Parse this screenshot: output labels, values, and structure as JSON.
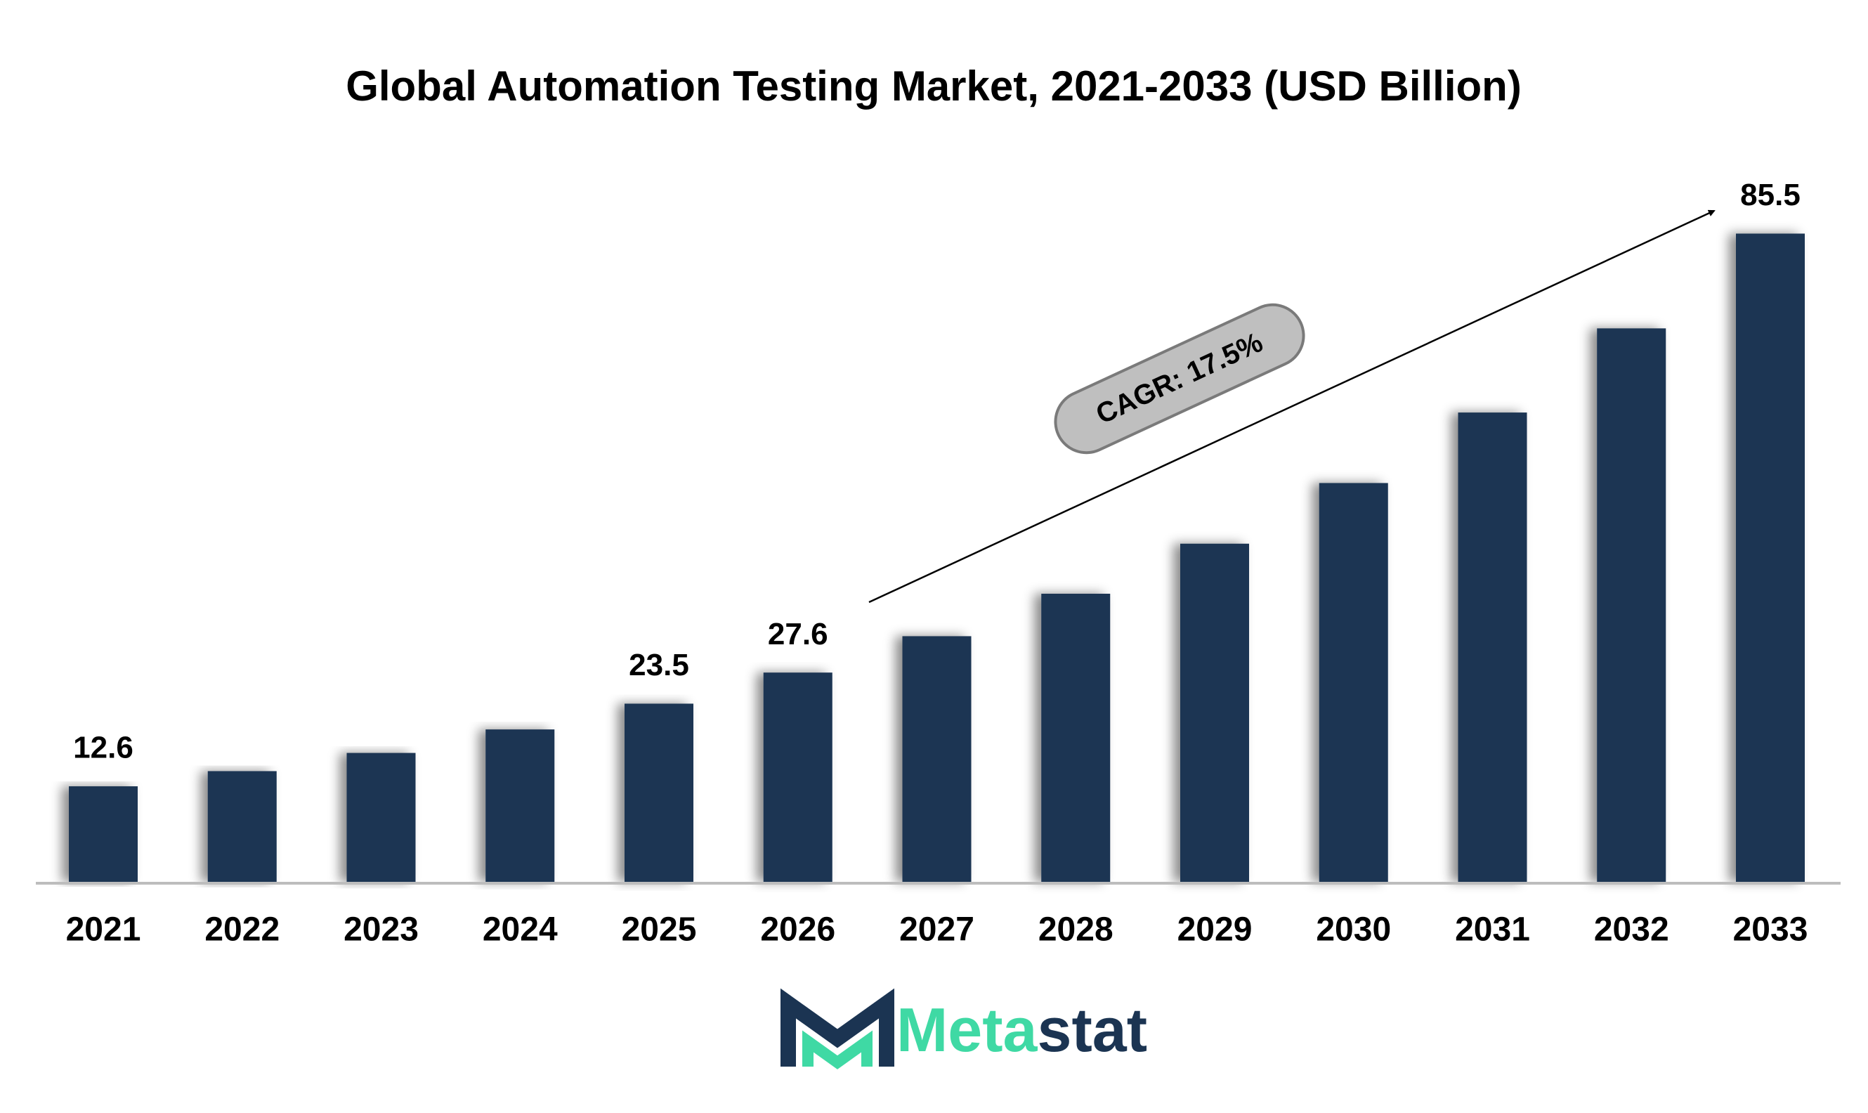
{
  "chart_data": {
    "type": "bar",
    "title": "Global Automation Testing Market, 2021-2033 (USD Billion)",
    "categories": [
      "2021",
      "2022",
      "2023",
      "2024",
      "2025",
      "2026",
      "2027",
      "2028",
      "2029",
      "2030",
      "2031",
      "2032",
      "2033"
    ],
    "values": [
      12.6,
      14.6,
      17.0,
      20.1,
      23.5,
      27.6,
      32.4,
      38.0,
      44.6,
      52.6,
      61.9,
      73.0,
      85.5
    ],
    "value_labels": [
      "12.6",
      null,
      null,
      null,
      "23.5",
      "27.6",
      null,
      null,
      null,
      null,
      null,
      null,
      "85.5"
    ],
    "color": "#1b3452",
    "annotation": "CAGR: 17.5%",
    "logo_text": [
      "Meta",
      "stat"
    ]
  }
}
